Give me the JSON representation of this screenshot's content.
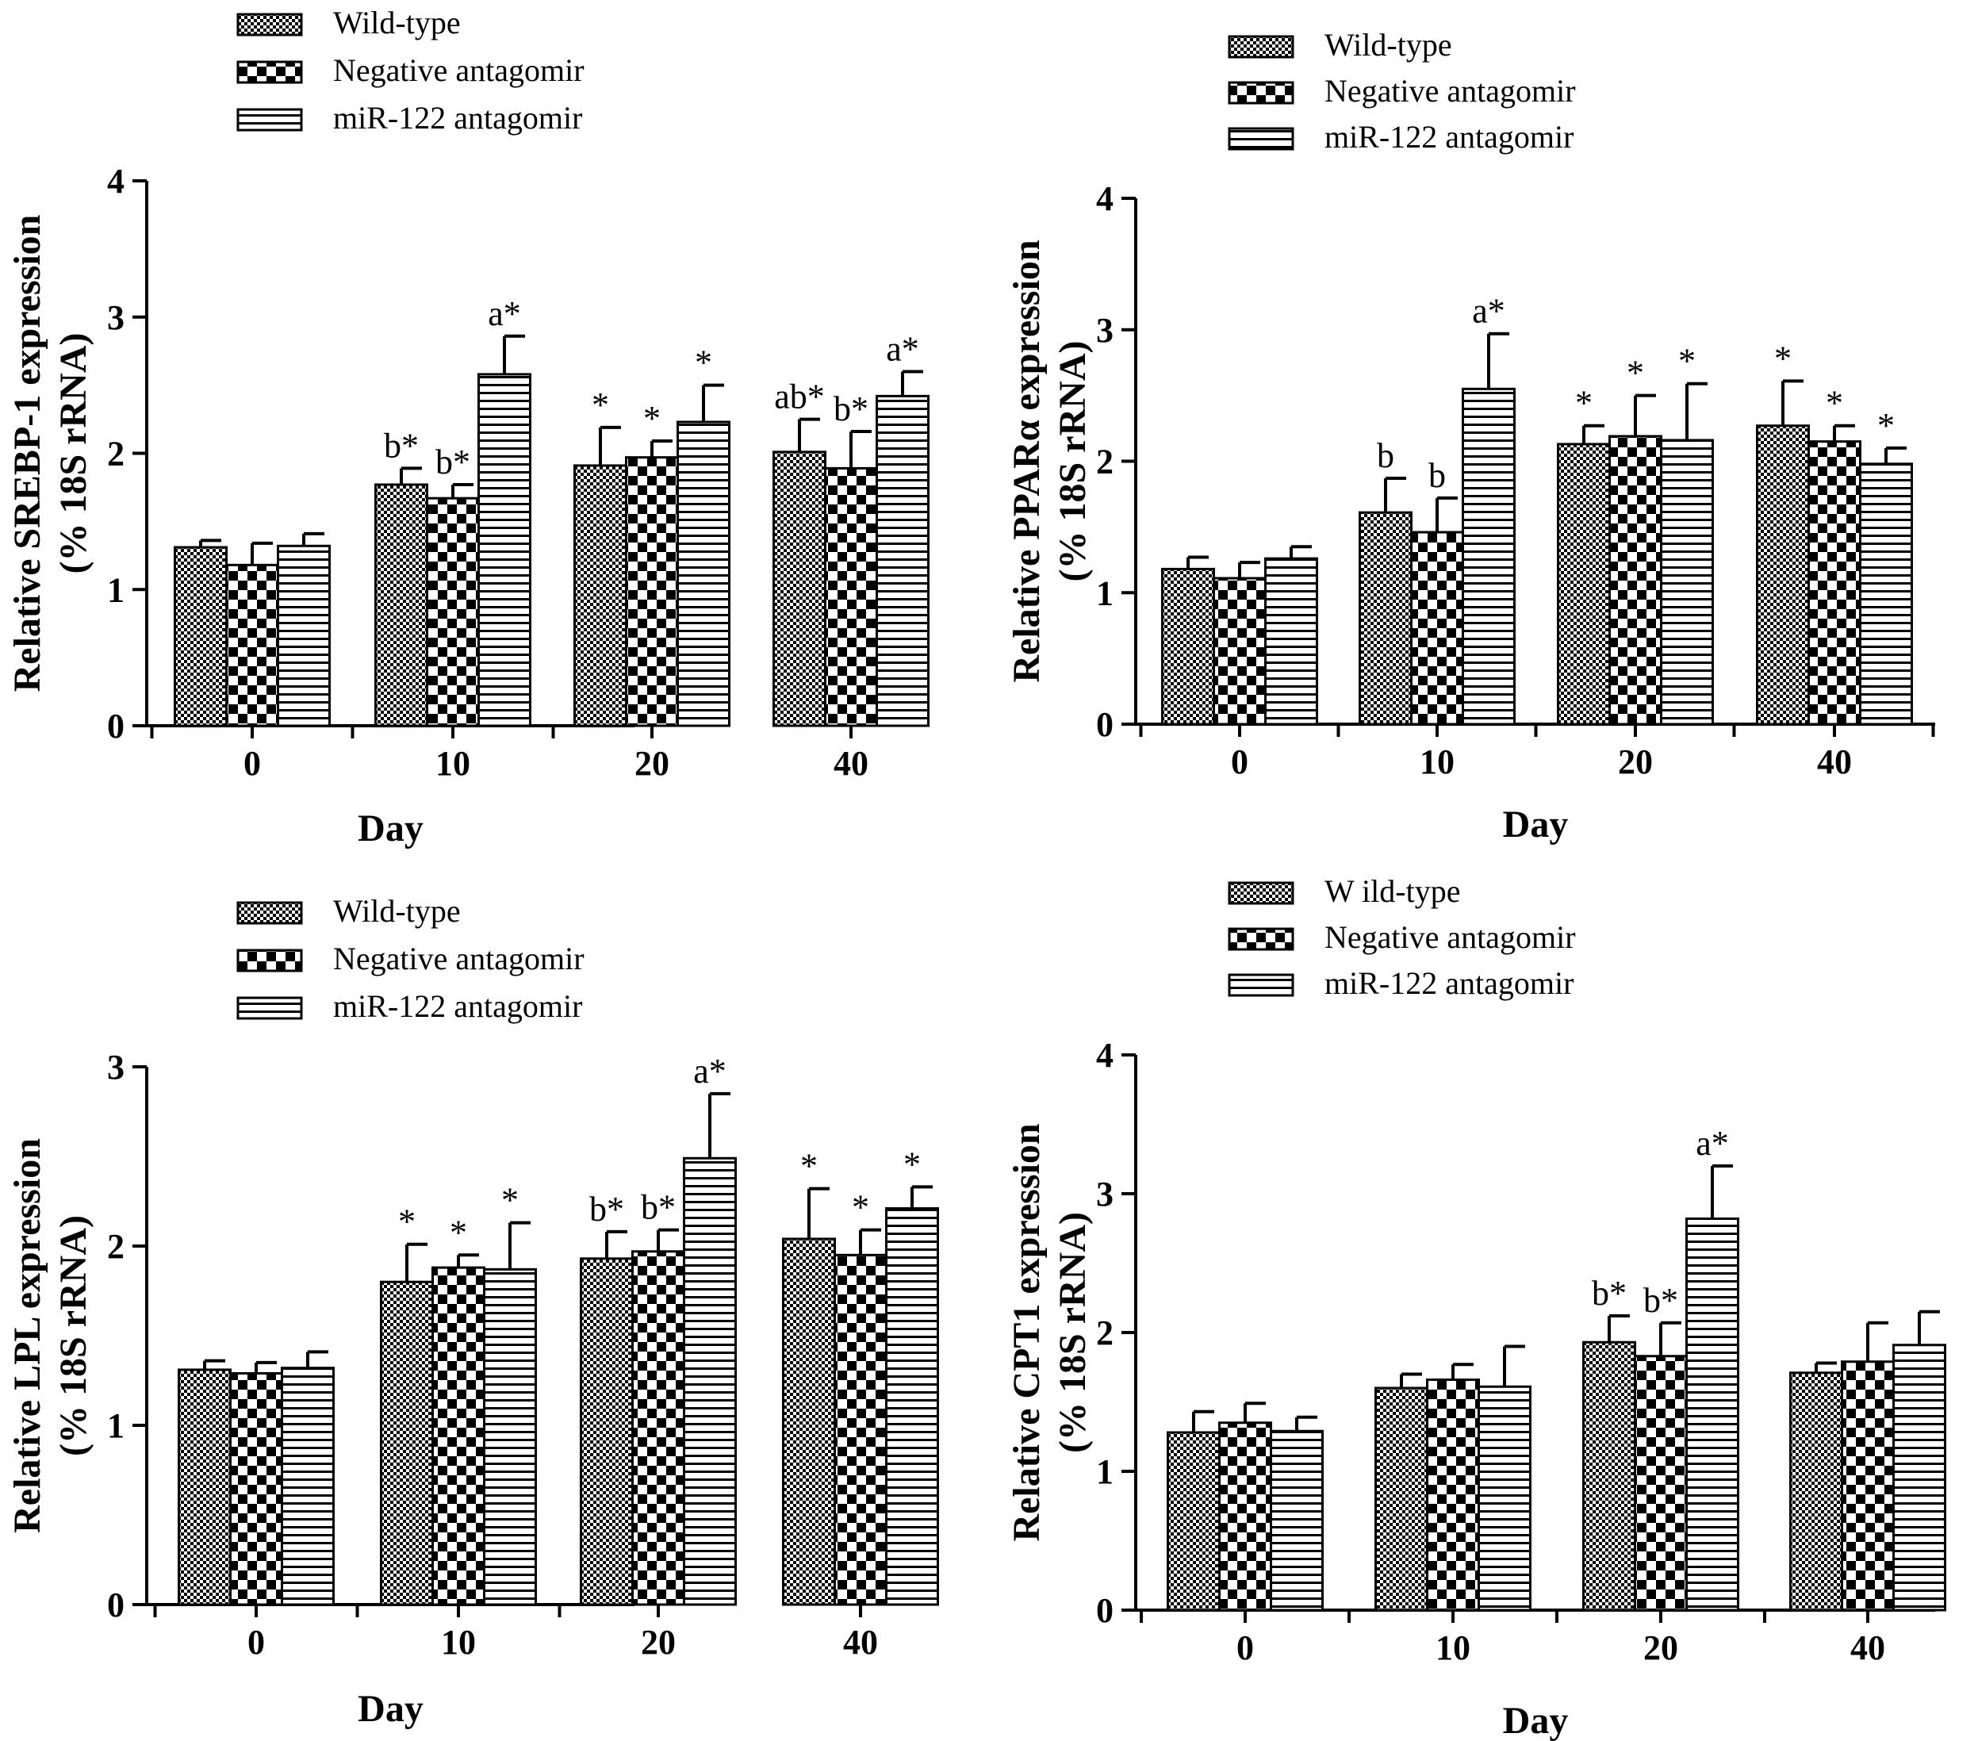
{
  "patterns": [
    "wild-type-pattern",
    "negative-antagomir-pattern",
    "mir122-antagomir-pattern"
  ],
  "chart_data": [
    {
      "type": "bar",
      "panel": "top-left",
      "categories": [
        "0",
        "10",
        "20",
        "40"
      ],
      "xlabel": "Day",
      "ylabel": [
        "Relative SREBP-1 expression",
        "(% 18S rRNA)"
      ],
      "ylim": [
        0,
        4
      ],
      "yticks": [
        "0",
        "1",
        "2",
        "3",
        "4"
      ],
      "legend": [
        "Wild-type",
        "Negative antagomir",
        "miR-122  antagomir"
      ],
      "series": [
        {
          "name": "Wild-type",
          "values": [
            1.31,
            1.77,
            1.91,
            2.01
          ],
          "errors": [
            0.05,
            0.12,
            0.28,
            0.24
          ],
          "labels": [
            "",
            "b*",
            "*",
            "ab*"
          ]
        },
        {
          "name": "Negative antagomir",
          "values": [
            1.18,
            1.67,
            1.97,
            1.89
          ],
          "errors": [
            0.16,
            0.1,
            0.12,
            0.27
          ],
          "labels": [
            "",
            "b*",
            "*",
            "b*"
          ]
        },
        {
          "name": "miR-122  antagomir",
          "values": [
            1.32,
            2.58,
            2.23,
            2.42
          ],
          "errors": [
            0.09,
            0.28,
            0.27,
            0.18
          ],
          "labels": [
            "",
            "a*",
            "*",
            "a*"
          ]
        }
      ]
    },
    {
      "type": "bar",
      "panel": "top-right",
      "categories": [
        "0",
        "10",
        "20",
        "40"
      ],
      "xlabel": "Day",
      "ylabel": [
        "Relative PPARα  expression",
        "(% 18S rRNA)"
      ],
      "ylim": [
        0,
        4
      ],
      "yticks": [
        "0",
        "1",
        "2",
        "3",
        "4"
      ],
      "legend": [
        "Wild-type",
        "Negative antagomir",
        "miR-122  antagomir"
      ],
      "series": [
        {
          "name": "Wild-type",
          "values": [
            1.18,
            1.61,
            2.13,
            2.27
          ],
          "errors": [
            0.09,
            0.26,
            0.14,
            0.34
          ],
          "labels": [
            "",
            "b",
            "*",
            "*"
          ]
        },
        {
          "name": "Negative antagomir",
          "values": [
            1.11,
            1.46,
            2.19,
            2.15
          ],
          "errors": [
            0.12,
            0.26,
            0.31,
            0.12
          ],
          "labels": [
            "",
            "b",
            "*",
            "*"
          ]
        },
        {
          "name": "miR-122  antagomir",
          "values": [
            1.26,
            2.55,
            2.16,
            1.98
          ],
          "errors": [
            0.09,
            0.42,
            0.43,
            0.12
          ],
          "labels": [
            "",
            "a*",
            "*",
            "*"
          ]
        }
      ]
    },
    {
      "type": "bar",
      "panel": "bottom-left",
      "categories": [
        "0",
        "10",
        "20",
        "40"
      ],
      "xlabel": "Day",
      "ylabel": [
        "Relative LPL expression",
        "(% 18S rRNA)"
      ],
      "ylim": [
        0,
        3
      ],
      "yticks": [
        "0",
        "1",
        "2",
        "3"
      ],
      "legend": [
        "Wild-type",
        "Negative antagomir",
        "miR-122  antagomir"
      ],
      "series": [
        {
          "name": "Wild-type",
          "values": [
            1.31,
            1.8,
            1.93,
            2.04
          ],
          "errors": [
            0.05,
            0.21,
            0.15,
            0.28
          ],
          "labels": [
            "",
            "*",
            "b*",
            "*"
          ]
        },
        {
          "name": "Negative antagomir",
          "values": [
            1.29,
            1.88,
            1.97,
            1.95
          ],
          "errors": [
            0.06,
            0.07,
            0.12,
            0.14
          ],
          "labels": [
            "",
            "*",
            "b*",
            "*"
          ]
        },
        {
          "name": "miR-122  antagomir",
          "values": [
            1.32,
            1.87,
            2.49,
            2.21
          ],
          "errors": [
            0.09,
            0.26,
            0.36,
            0.12
          ],
          "labels": [
            "",
            "*",
            "a*",
            "*"
          ]
        }
      ]
    },
    {
      "type": "bar",
      "panel": "bottom-right",
      "categories": [
        "0",
        "10",
        "20",
        "40"
      ],
      "xlabel": "Day",
      "ylabel": [
        "Relative CPT1 expression",
        "(% 18S rRNA)"
      ],
      "ylim": [
        0,
        4
      ],
      "yticks": [
        "0",
        "1",
        "2",
        "3",
        "4"
      ],
      "legend": [
        "W ild-type",
        "Negative antagomir",
        "miR-122  antagomir"
      ],
      "series": [
        {
          "name": "W ild-type",
          "values": [
            1.28,
            1.6,
            1.93,
            1.71
          ],
          "errors": [
            0.15,
            0.1,
            0.19,
            0.07
          ],
          "labels": [
            "",
            "",
            "b*",
            ""
          ]
        },
        {
          "name": "Negative antagomir",
          "values": [
            1.35,
            1.66,
            1.83,
            1.79
          ],
          "errors": [
            0.14,
            0.11,
            0.24,
            0.28
          ],
          "labels": [
            "",
            "",
            "b*",
            ""
          ]
        },
        {
          "name": "miR-122  antagomir",
          "values": [
            1.29,
            1.61,
            2.82,
            1.91
          ],
          "errors": [
            0.1,
            0.29,
            0.38,
            0.24
          ],
          "labels": [
            "",
            "",
            "a*",
            ""
          ]
        }
      ]
    }
  ]
}
